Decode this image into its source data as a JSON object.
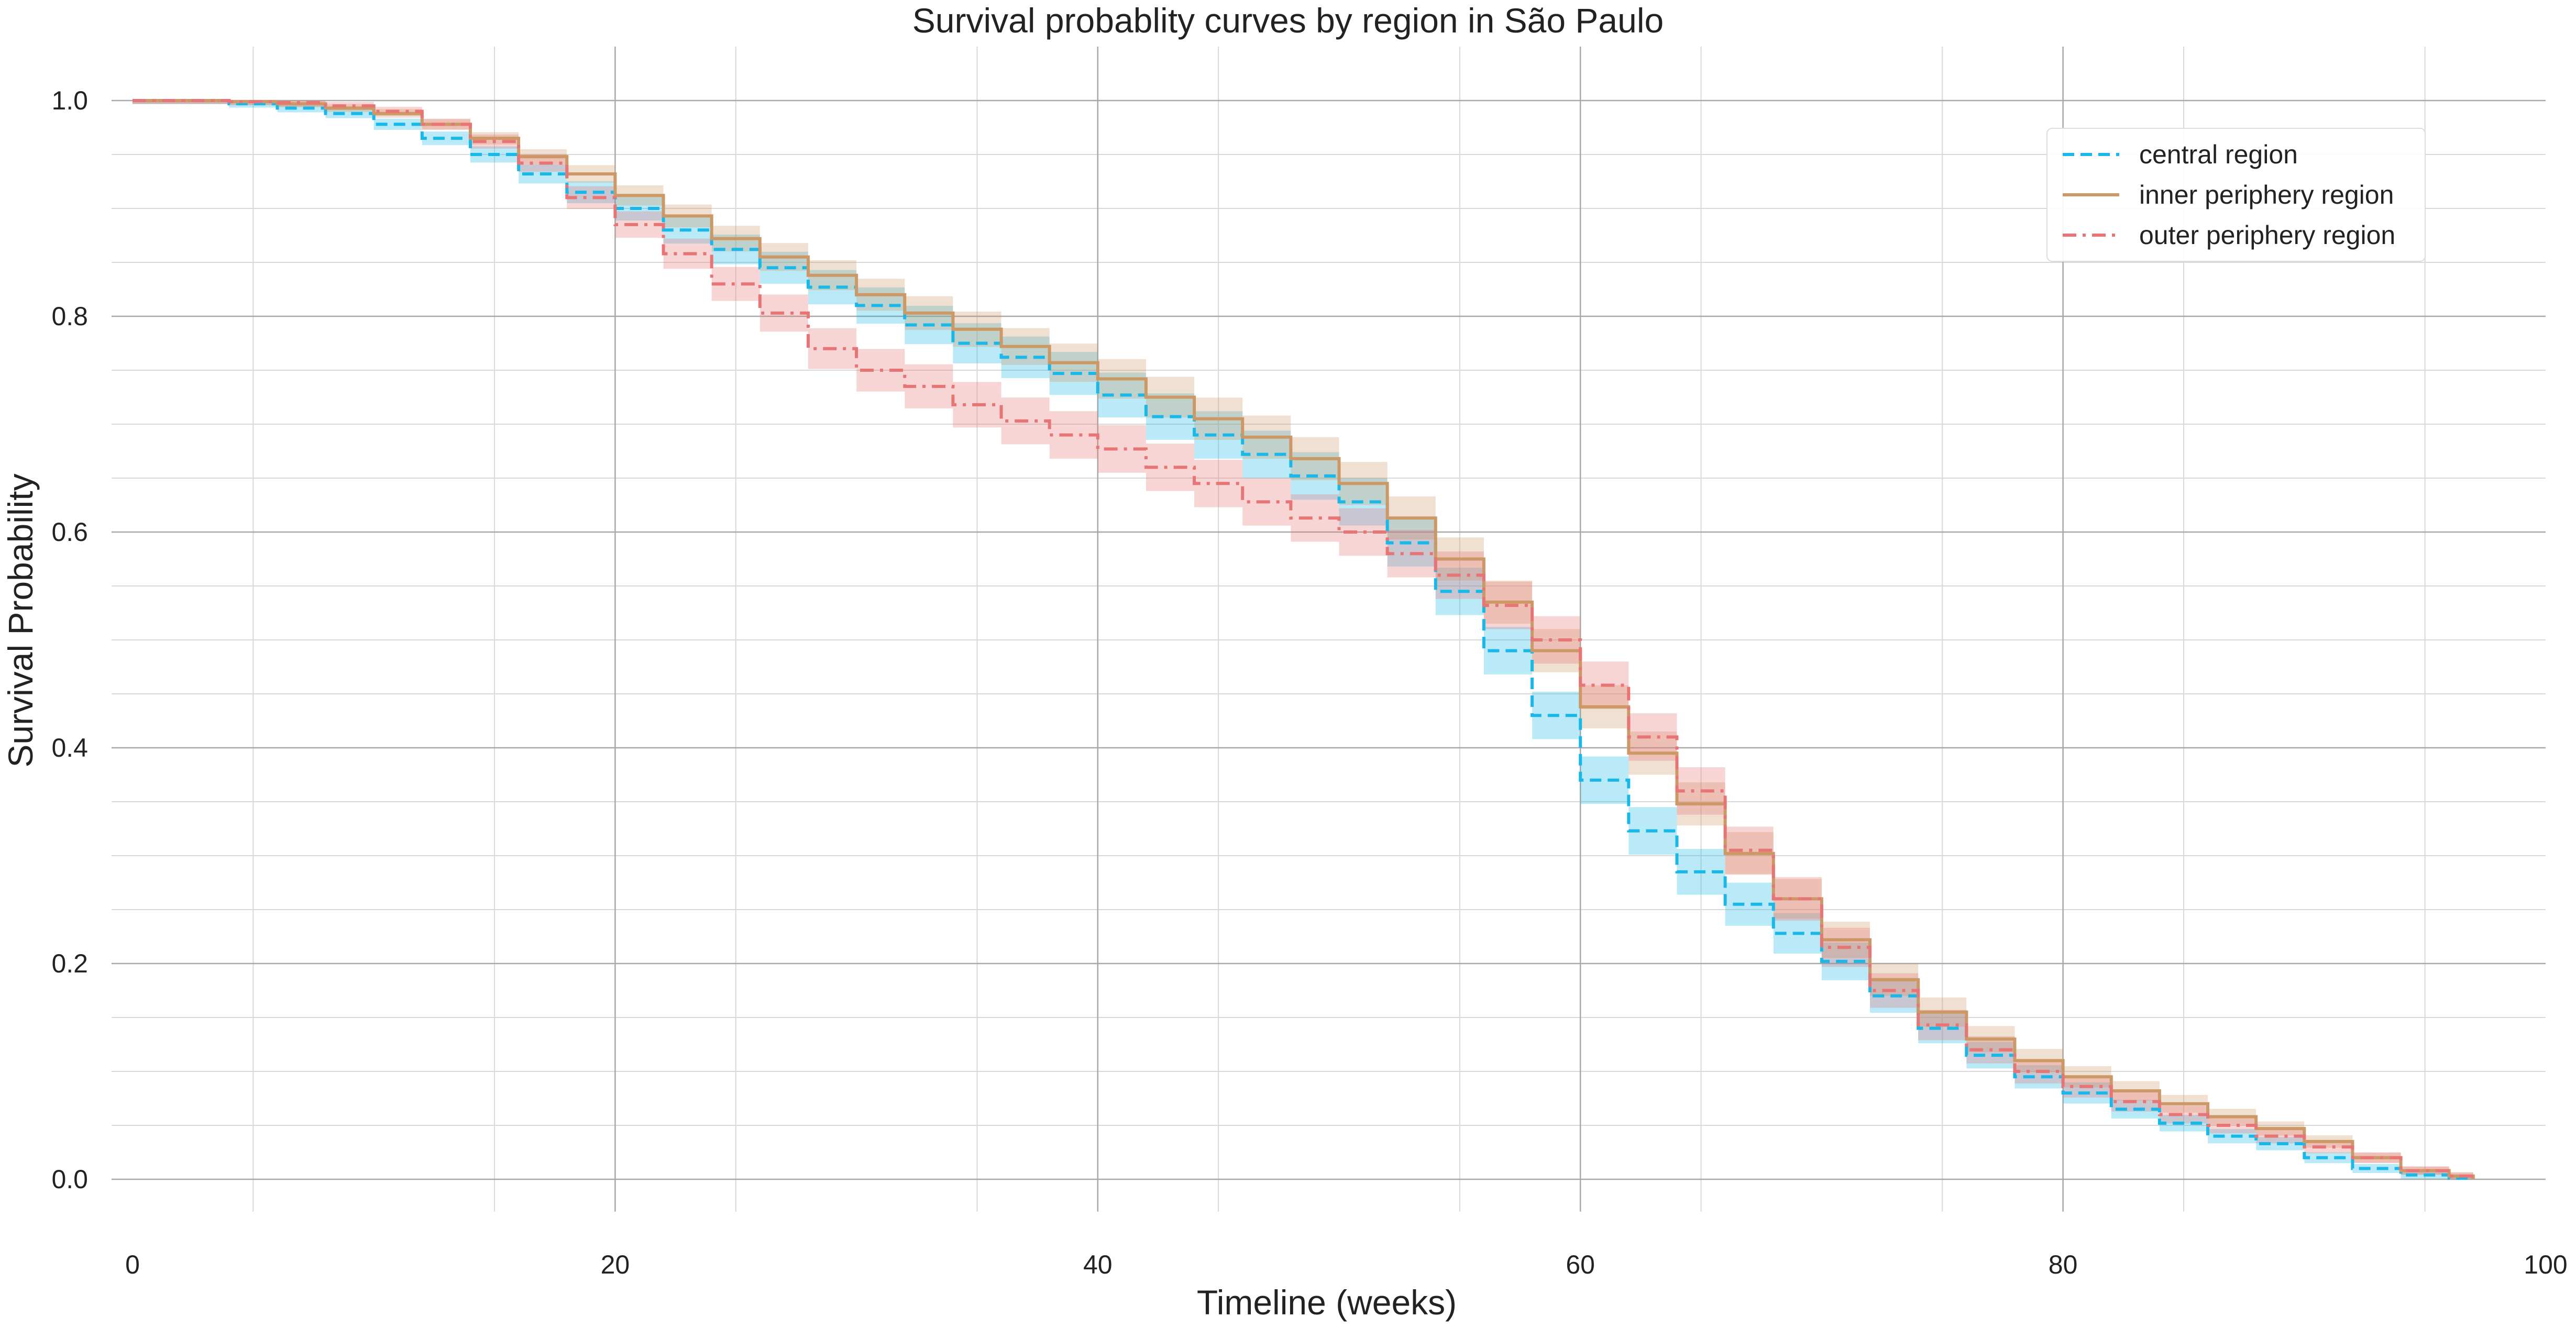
{
  "chart_data": {
    "type": "line",
    "subtype": "step-survival-with-confidence-bands",
    "title": "Survival probablity curves by region in São Paulo",
    "xlabel": "Timeline (weeks)",
    "ylabel": "Survival Probability",
    "xlim": [
      0,
      100
    ],
    "ylim": [
      -0.03,
      1.05
    ],
    "x_ticks": [
      0,
      20,
      40,
      60,
      80,
      100
    ],
    "x_tick_labels": [
      "0",
      "20",
      "40",
      "60",
      "80",
      "100"
    ],
    "y_ticks": [
      0.0,
      0.2,
      0.4,
      0.6,
      0.8,
      1.0
    ],
    "y_tick_labels": [
      "0.0",
      "0.2",
      "0.4",
      "0.6",
      "0.8",
      "1.0"
    ],
    "grid": "major and minor",
    "legend_position": "top-right",
    "series": [
      {
        "name": "central region",
        "color": "#1ab8e8",
        "line_style": "dashed",
        "ci_half_width": 0.022,
        "points": [
          [
            0,
            1.0
          ],
          [
            4,
            0.997
          ],
          [
            6,
            0.993
          ],
          [
            8,
            0.988
          ],
          [
            10,
            0.978
          ],
          [
            12,
            0.965
          ],
          [
            14,
            0.95
          ],
          [
            16,
            0.932
          ],
          [
            18,
            0.915
          ],
          [
            20,
            0.9
          ],
          [
            22,
            0.88
          ],
          [
            24,
            0.862
          ],
          [
            26,
            0.845
          ],
          [
            28,
            0.827
          ],
          [
            30,
            0.81
          ],
          [
            32,
            0.792
          ],
          [
            34,
            0.775
          ],
          [
            36,
            0.762
          ],
          [
            38,
            0.747
          ],
          [
            40,
            0.727
          ],
          [
            42,
            0.707
          ],
          [
            44,
            0.69
          ],
          [
            46,
            0.672
          ],
          [
            48,
            0.652
          ],
          [
            50,
            0.628
          ],
          [
            52,
            0.59
          ],
          [
            54,
            0.545
          ],
          [
            56,
            0.49
          ],
          [
            58,
            0.43
          ],
          [
            60,
            0.37
          ],
          [
            62,
            0.323
          ],
          [
            64,
            0.285
          ],
          [
            66,
            0.255
          ],
          [
            68,
            0.228
          ],
          [
            70,
            0.202
          ],
          [
            72,
            0.17
          ],
          [
            74,
            0.14
          ],
          [
            76,
            0.115
          ],
          [
            78,
            0.095
          ],
          [
            80,
            0.08
          ],
          [
            82,
            0.065
          ],
          [
            84,
            0.052
          ],
          [
            86,
            0.04
          ],
          [
            88,
            0.033
          ],
          [
            90,
            0.02
          ],
          [
            92,
            0.01
          ],
          [
            94,
            0.004
          ],
          [
            96,
            0.001
          ],
          [
            97,
            0.0
          ]
        ]
      },
      {
        "name": "inner periphery region",
        "color": "#cc9966",
        "line_style": "solid",
        "ci_half_width": 0.02,
        "points": [
          [
            0,
            1.0
          ],
          [
            4,
            0.999
          ],
          [
            6,
            0.997
          ],
          [
            8,
            0.993
          ],
          [
            10,
            0.988
          ],
          [
            12,
            0.978
          ],
          [
            14,
            0.965
          ],
          [
            16,
            0.948
          ],
          [
            18,
            0.932
          ],
          [
            20,
            0.912
          ],
          [
            22,
            0.893
          ],
          [
            24,
            0.872
          ],
          [
            26,
            0.855
          ],
          [
            28,
            0.838
          ],
          [
            30,
            0.82
          ],
          [
            32,
            0.803
          ],
          [
            34,
            0.788
          ],
          [
            36,
            0.772
          ],
          [
            38,
            0.757
          ],
          [
            40,
            0.742
          ],
          [
            42,
            0.725
          ],
          [
            44,
            0.705
          ],
          [
            46,
            0.688
          ],
          [
            48,
            0.668
          ],
          [
            50,
            0.645
          ],
          [
            52,
            0.613
          ],
          [
            54,
            0.575
          ],
          [
            56,
            0.535
          ],
          [
            58,
            0.49
          ],
          [
            60,
            0.438
          ],
          [
            62,
            0.395
          ],
          [
            64,
            0.348
          ],
          [
            66,
            0.302
          ],
          [
            68,
            0.26
          ],
          [
            70,
            0.222
          ],
          [
            72,
            0.185
          ],
          [
            74,
            0.155
          ],
          [
            76,
            0.13
          ],
          [
            78,
            0.11
          ],
          [
            80,
            0.095
          ],
          [
            82,
            0.082
          ],
          [
            84,
            0.07
          ],
          [
            86,
            0.058
          ],
          [
            88,
            0.047
          ],
          [
            90,
            0.035
          ],
          [
            92,
            0.02
          ],
          [
            94,
            0.008
          ],
          [
            96,
            0.003
          ],
          [
            97,
            0.0
          ]
        ]
      },
      {
        "name": "outer periphery region",
        "color": "#e87575",
        "line_style": "dashdot",
        "ci_half_width": 0.022,
        "points": [
          [
            0,
            1.0
          ],
          [
            4,
            0.999
          ],
          [
            6,
            0.998
          ],
          [
            8,
            0.995
          ],
          [
            10,
            0.99
          ],
          [
            12,
            0.978
          ],
          [
            14,
            0.962
          ],
          [
            16,
            0.942
          ],
          [
            18,
            0.91
          ],
          [
            20,
            0.885
          ],
          [
            22,
            0.858
          ],
          [
            24,
            0.83
          ],
          [
            26,
            0.803
          ],
          [
            28,
            0.77
          ],
          [
            30,
            0.75
          ],
          [
            32,
            0.735
          ],
          [
            34,
            0.718
          ],
          [
            36,
            0.703
          ],
          [
            38,
            0.69
          ],
          [
            40,
            0.677
          ],
          [
            42,
            0.66
          ],
          [
            44,
            0.645
          ],
          [
            46,
            0.628
          ],
          [
            48,
            0.613
          ],
          [
            50,
            0.6
          ],
          [
            52,
            0.58
          ],
          [
            54,
            0.56
          ],
          [
            56,
            0.532
          ],
          [
            58,
            0.5
          ],
          [
            60,
            0.458
          ],
          [
            62,
            0.41
          ],
          [
            64,
            0.36
          ],
          [
            66,
            0.305
          ],
          [
            68,
            0.26
          ],
          [
            70,
            0.215
          ],
          [
            72,
            0.175
          ],
          [
            74,
            0.143
          ],
          [
            76,
            0.12
          ],
          [
            78,
            0.1
          ],
          [
            80,
            0.086
          ],
          [
            82,
            0.072
          ],
          [
            84,
            0.06
          ],
          [
            86,
            0.05
          ],
          [
            88,
            0.04
          ],
          [
            90,
            0.03
          ],
          [
            92,
            0.02
          ],
          [
            94,
            0.008
          ],
          [
            96,
            0.003
          ],
          [
            97,
            0.0
          ]
        ]
      }
    ]
  }
}
